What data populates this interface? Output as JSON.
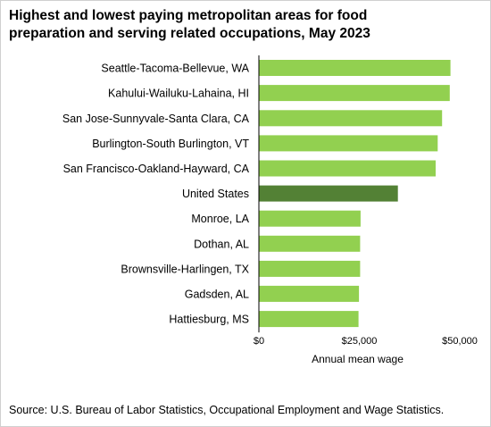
{
  "title_line1": "Highest and lowest paying metropolitan areas for food",
  "title_line2": "preparation and serving related occupations, May 2023",
  "source": "Source: U.S. Bureau of Labor Statistics, Occupational Employment and Wage Statistics.",
  "colors": {
    "metro": "#92d050",
    "national": "#538135",
    "axis": "#000000"
  },
  "chart_data": {
    "type": "bar",
    "orientation": "horizontal",
    "title": "Highest and lowest paying metropolitan areas for food preparation and serving related occupations, May 2023",
    "xlabel": "Annual mean wage",
    "ylabel": "",
    "xlim": [
      0,
      50000
    ],
    "tick_values": [
      0,
      25000,
      50000
    ],
    "tick_labels": [
      "$0",
      "$25,000",
      "$50,000"
    ],
    "grid": false,
    "categories": [
      "Seattle-Tacoma-Bellevue, WA",
      "Kahului-Wailuku-Lahaina, HI",
      "San Jose-Sunnyvale-Santa Clara, CA",
      "Burlington-South Burlington, VT",
      "San Francisco-Oakland-Hayward, CA",
      "United States",
      "Monroe, LA",
      "Dothan, AL",
      "Brownsville-Harlingen, TX",
      "Gadsden, AL",
      "Hattiesburg, MS"
    ],
    "values": [
      47700,
      47500,
      45600,
      44500,
      44000,
      34600,
      25300,
      25200,
      25200,
      24900,
      24800
    ],
    "highlight": "United States"
  }
}
